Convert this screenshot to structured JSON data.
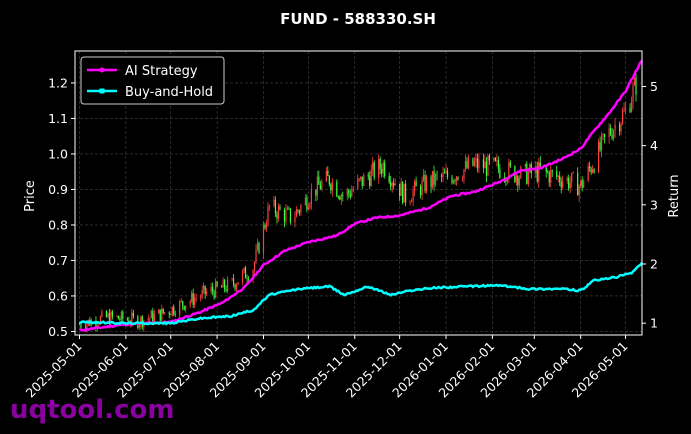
{
  "chart_data": {
    "type": "line",
    "title": "FUND - 588330.SH",
    "ylabel": "Price",
    "y2label": "Return",
    "x_ticks": [
      "2025-05-01",
      "2025-06-01",
      "2025-07-01",
      "2025-08-01",
      "2025-09-01",
      "2025-10-01",
      "2025-11-01",
      "2025-12-01",
      "2026-01-01",
      "2026-02-01",
      "2026-03-01",
      "2026-04-01",
      "2026-05-01"
    ],
    "xlim": [
      "2025-04-28",
      "2026-05-12"
    ],
    "ylim": [
      0.49,
      1.29
    ],
    "y_ticks": [
      "0.5",
      "0.6",
      "0.7",
      "0.8",
      "0.9",
      "1.0",
      "1.1",
      "1.2"
    ],
    "y2lim": [
      0.8,
      5.6
    ],
    "y2_ticks": [
      "1",
      "2",
      "3",
      "4",
      "5"
    ],
    "grid": true,
    "legend_position": "top-left",
    "colors": {
      "strategy": "#ff00ff",
      "buyhold": "#00ffff",
      "up": "#ff4040",
      "down": "#40ff40",
      "background": "#000000"
    },
    "price": {
      "dates": [
        "2025-05-01",
        "2025-05-20",
        "2025-06-10",
        "2025-06-25",
        "2025-07-10",
        "2025-07-25",
        "2025-08-10",
        "2025-08-25",
        "2025-09-05",
        "2025-09-20",
        "2025-10-05",
        "2025-10-15",
        "2025-10-25",
        "2025-11-05",
        "2025-11-20",
        "2025-12-05",
        "2025-12-20",
        "2026-01-05",
        "2026-01-20",
        "2026-02-05",
        "2026-02-20",
        "2026-03-05",
        "2026-03-20",
        "2026-04-01",
        "2026-04-10",
        "2026-04-20",
        "2026-05-01",
        "2026-05-10"
      ],
      "values": [
        0.52,
        0.54,
        0.53,
        0.55,
        0.58,
        0.61,
        0.63,
        0.68,
        0.85,
        0.82,
        0.9,
        0.93,
        0.88,
        0.92,
        0.97,
        0.88,
        0.92,
        0.94,
        0.97,
        0.96,
        0.94,
        0.95,
        0.93,
        0.91,
        0.98,
        1.06,
        1.12,
        1.22
      ]
    },
    "series": [
      {
        "name": "AI Strategy",
        "dates": [
          "2025-05-01",
          "2025-06-01",
          "2025-07-01",
          "2025-07-20",
          "2025-08-05",
          "2025-08-20",
          "2025-09-01",
          "2025-09-15",
          "2025-10-01",
          "2025-10-20",
          "2025-11-01",
          "2025-11-15",
          "2025-12-01",
          "2025-12-20",
          "2026-01-05",
          "2026-01-20",
          "2026-02-05",
          "2026-02-20",
          "2026-03-05",
          "2026-03-20",
          "2026-04-01",
          "2026-04-10",
          "2026-04-20",
          "2026-05-01",
          "2026-05-12"
        ],
        "values": [
          0.88,
          0.98,
          1.02,
          1.18,
          1.35,
          1.62,
          1.98,
          2.22,
          2.37,
          2.48,
          2.68,
          2.78,
          2.82,
          2.95,
          3.15,
          3.22,
          3.38,
          3.58,
          3.62,
          3.78,
          3.95,
          4.25,
          4.55,
          4.92,
          5.45
        ]
      },
      {
        "name": "Buy-and-Hold",
        "dates": [
          "2025-05-01",
          "2025-06-01",
          "2025-07-01",
          "2025-07-20",
          "2025-08-10",
          "2025-08-25",
          "2025-09-05",
          "2025-09-25",
          "2025-10-15",
          "2025-10-25",
          "2025-11-10",
          "2025-11-25",
          "2025-12-10",
          "2025-12-25",
          "2026-01-15",
          "2026-02-05",
          "2026-02-25",
          "2026-03-20",
          "2026-04-01",
          "2026-04-10",
          "2026-04-25",
          "2026-05-05",
          "2026-05-12"
        ],
        "values": [
          1.02,
          1.0,
          1.0,
          1.08,
          1.12,
          1.22,
          1.48,
          1.58,
          1.62,
          1.48,
          1.62,
          1.48,
          1.56,
          1.6,
          1.62,
          1.64,
          1.58,
          1.58,
          1.55,
          1.72,
          1.78,
          1.85,
          2.02
        ]
      }
    ]
  },
  "watermark": "uqtool.com"
}
